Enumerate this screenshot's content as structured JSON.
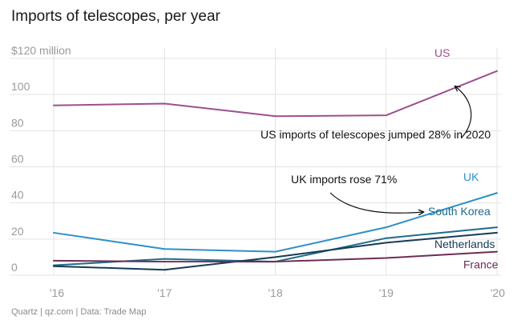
{
  "chart_data": {
    "type": "line",
    "title": "Imports of telescopes, per year",
    "y_unit_label": "$120 million",
    "yticks": [
      0,
      20,
      40,
      60,
      80,
      100
    ],
    "ylim": [
      0,
      120
    ],
    "categories": [
      "'16",
      "'17",
      "'18",
      "'19",
      "'20"
    ],
    "series": [
      {
        "name": "US",
        "color": "#9c4f8c",
        "values": [
          94,
          95,
          88,
          88.5,
          113
        ]
      },
      {
        "name": "UK",
        "color": "#2d8fc7",
        "values": [
          23.5,
          14.5,
          13,
          26.5,
          45.5
        ]
      },
      {
        "name": "South Korea",
        "color": "#1f6b8c",
        "values": [
          5.5,
          9,
          7.5,
          20.5,
          26.5
        ]
      },
      {
        "name": "Netherlands",
        "color": "#163a55",
        "values": [
          5,
          3,
          10,
          18,
          23.5
        ]
      },
      {
        "name": "France",
        "color": "#6e2c55",
        "values": [
          8,
          7.5,
          7.5,
          9.5,
          13
        ]
      }
    ],
    "annotations": [
      {
        "text": "US imports of telescopes jumped 28% in 2020"
      },
      {
        "text": "UK imports rose 71%"
      }
    ]
  },
  "footer": "Quartz | qz.com | Data: Trade Map"
}
